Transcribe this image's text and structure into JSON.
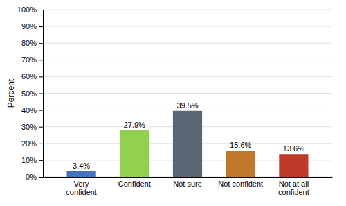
{
  "chart_data": {
    "type": "bar",
    "ylabel": "Percent",
    "categories": [
      "Very\nconfident",
      "Confident",
      "Not sure",
      "Not confident",
      "Not at all\nconfident"
    ],
    "values": [
      3.4,
      27.9,
      39.5,
      15.6,
      13.6
    ],
    "value_labels": [
      "3.4%",
      "27.9%",
      "39.5%",
      "15.6%",
      "13.6%"
    ],
    "data_labels": true,
    "colors": [
      "#4472c4",
      "#92d050",
      "#596673",
      "#c0782a",
      "#be3a2a"
    ],
    "ylim": [
      0,
      100
    ],
    "yticks": [
      {
        "value": 0,
        "label": "0%"
      },
      {
        "value": 10,
        "label": "10%"
      },
      {
        "value": 20,
        "label": "20%"
      },
      {
        "value": 30,
        "label": "30%"
      },
      {
        "value": 40,
        "label": "40%"
      },
      {
        "value": 50,
        "label": "50%"
      },
      {
        "value": 60,
        "label": "60%"
      },
      {
        "value": 70,
        "label": "70%"
      },
      {
        "value": 80,
        "label": "80%"
      },
      {
        "value": 90,
        "label": "90%"
      },
      {
        "value": 100,
        "label": "100%"
      }
    ],
    "grid": true
  }
}
